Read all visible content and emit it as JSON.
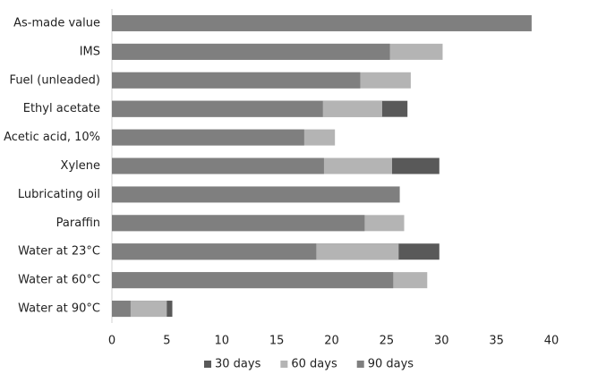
{
  "chart_data": {
    "type": "bar",
    "orientation": "horizontal",
    "categories": [
      "As-made value",
      "IMS",
      "Fuel (unleaded)",
      "Ethyl acetate",
      "Acetic acid, 10%",
      "Xylene",
      "Lubricating oil",
      "Paraffin",
      "Water at 23°C",
      "Water at 60°C",
      "Water at 90°C"
    ],
    "series": [
      {
        "name": "30 days",
        "color": "#595959",
        "values": [
          null,
          null,
          null,
          26.9,
          null,
          29.8,
          null,
          null,
          29.8,
          null,
          5.5
        ]
      },
      {
        "name": "60 days",
        "color": "#b4b4b4",
        "values": [
          null,
          30.1,
          27.2,
          24.6,
          20.3,
          25.5,
          null,
          26.6,
          26.1,
          28.7,
          5.0
        ]
      },
      {
        "name": "90 days",
        "color": "#7f7f7f",
        "values": [
          38.2,
          25.3,
          22.6,
          19.2,
          17.5,
          19.3,
          26.2,
          23.0,
          18.6,
          25.6,
          1.7
        ]
      }
    ],
    "xlim": [
      0,
      40
    ],
    "xticks": [
      0,
      5,
      10,
      15,
      20,
      25,
      30,
      35,
      40
    ],
    "legend": "bottom"
  }
}
